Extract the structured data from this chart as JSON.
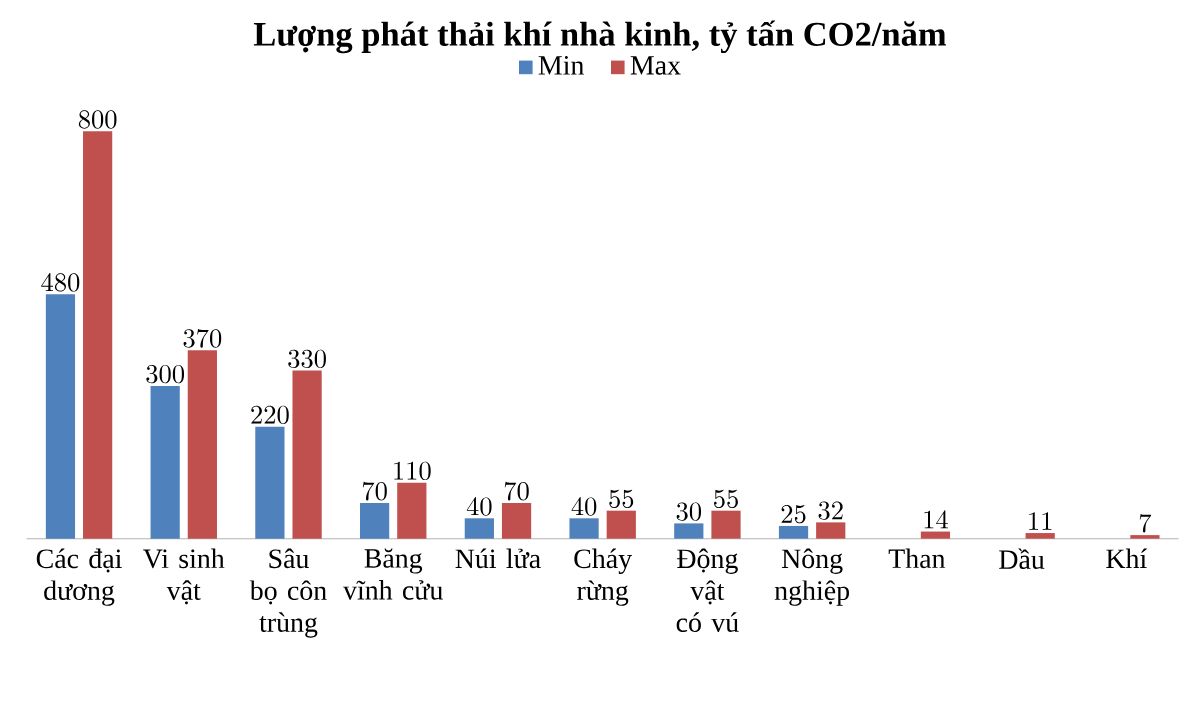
{
  "chart_data": {
    "type": "bar",
    "title": "Lượng phát thải khí nhà kinh, tỷ tấn CO2/năm",
    "categories": [
      "Các đại dương",
      "Vi sinh vật",
      "Sâu bọ côn trùng",
      "Băng vĩnh cửu",
      "Núi lửa",
      "Cháy rừng",
      "Động vật có vú",
      "Nông nghiệp",
      "Than",
      "Dầu",
      "Khí"
    ],
    "series": [
      {
        "name": "Min",
        "color": "#4f81bd",
        "values": [
          480,
          300,
          220,
          70,
          40,
          40,
          30,
          25,
          null,
          null,
          null
        ]
      },
      {
        "name": "Max",
        "color": "#c0504d",
        "values": [
          800,
          370,
          330,
          110,
          70,
          55,
          55,
          32,
          14,
          11,
          7
        ]
      }
    ],
    "data_labels": true,
    "legend": "top"
  }
}
